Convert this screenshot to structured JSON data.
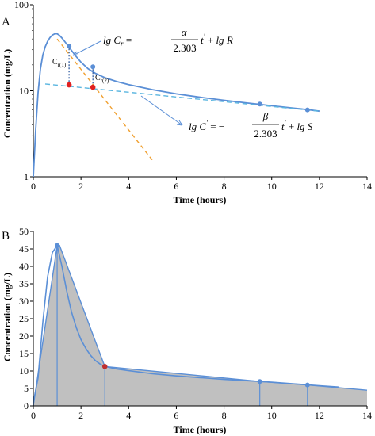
{
  "chart_data": [
    {
      "panel": "A",
      "type": "line",
      "title": "",
      "xlabel": "Time (hours)",
      "ylabel": "Concentration (mg/L)",
      "xlim": [
        0,
        14
      ],
      "ylim": [
        1,
        100
      ],
      "yscale": "log",
      "x_ticks": [
        "0",
        "2",
        "4",
        "6",
        "8",
        "10",
        "12",
        "14"
      ],
      "y_ticks": [
        "1",
        "10",
        "100"
      ],
      "grid": false,
      "legend": "none",
      "colors": {
        "curve": "#5b8fd6",
        "terminal_line": "#5bb6e0",
        "residual_line": "#f0a030",
        "residual_points": "#e02020"
      },
      "series": [
        {
          "style": "curve",
          "x": [
            0,
            0.1,
            0.2,
            0.3,
            0.4,
            0.5,
            0.6,
            0.7,
            0.8,
            0.9,
            1.0,
            1.1,
            1.2,
            1.4,
            1.6,
            1.8,
            2.0,
            2.3,
            2.6,
            3.0,
            3.5,
            4.0,
            5.0,
            6.0,
            7.0,
            8.0,
            9.0,
            9.5,
            10.0,
            11.0,
            11.5,
            12.0
          ],
          "values": [
            1,
            3.5,
            9.5,
            18,
            26,
            32.5,
            37.5,
            41.5,
            44.5,
            46,
            46,
            44,
            41,
            35,
            29.5,
            25,
            21.5,
            18,
            16,
            14.2,
            12.8,
            11.8,
            10.3,
            9.2,
            8.4,
            7.75,
            7.2,
            6.95,
            6.7,
            6.25,
            6.05,
            5.8
          ]
        },
        {
          "style": "points",
          "x": [
            1.5,
            2.5,
            9.5,
            11.5
          ],
          "values": [
            33,
            19,
            7,
            6
          ]
        },
        {
          "style": "terminal-line",
          "x": [
            0.5,
            12
          ],
          "values": [
            12,
            5.8
          ]
        },
        {
          "style": "residual-line",
          "x": [
            1.0,
            5.0
          ],
          "values": [
            40,
            1.55
          ]
        },
        {
          "style": "residual-points",
          "x": [
            1.5,
            2.5
          ],
          "values": [
            11.7,
            11
          ]
        }
      ],
      "annotations": {
        "cr1": "C",
        "cr1_sub": "r(1)",
        "cr2": "C",
        "cr2_sub": "r(2)",
        "eq1": {
          "lg": "lg",
          "var": "C",
          "sub": "r",
          "eq": "=",
          "minus": "−",
          "num": "α",
          "den": "2.303",
          "t": "t",
          "prime": "′",
          "plus": "+",
          "lg2": "lg",
          "const": "R"
        },
        "eq2": {
          "lg": "lg",
          "var": "C",
          "sup": "′",
          "eq": "=",
          "minus": "−",
          "num": "β",
          "den": "2.303",
          "t": "t",
          "prime": "′",
          "plus": "+",
          "lg2": "lg",
          "const": "S"
        }
      }
    },
    {
      "panel": "B",
      "type": "area",
      "title": "",
      "xlabel": "Time (hours)",
      "ylabel": "Concentration (mg/L)",
      "xlim": [
        0,
        14
      ],
      "ylim": [
        0,
        50
      ],
      "x_ticks": [
        "0",
        "2",
        "4",
        "6",
        "8",
        "10",
        "12",
        "14"
      ],
      "y_ticks": [
        "0",
        "5",
        "10",
        "15",
        "20",
        "25",
        "30",
        "35",
        "40",
        "45",
        "50"
      ],
      "grid": false,
      "legend": "none",
      "colors": {
        "curve": "#5b8fd6",
        "fill": "#c0c0c0",
        "highlight_point": "#c03030"
      },
      "series": [
        {
          "style": "curve",
          "x": [
            0,
            0.2,
            0.4,
            0.6,
            0.8,
            1.0,
            1.2,
            1.4,
            1.6,
            1.8,
            2.0,
            2.2,
            2.4,
            2.6,
            2.8,
            3.0,
            3.5,
            4.0,
            5.0,
            6.0,
            7.0,
            8.0,
            9.0,
            9.5,
            10.0,
            11.0,
            11.5,
            12.0,
            12.8
          ],
          "values": [
            1,
            8,
            24,
            37,
            44,
            46,
            40,
            33,
            27,
            22.5,
            19,
            16.5,
            14.5,
            13,
            12,
            11.3,
            10.6,
            10.1,
            9.2,
            8.6,
            8.1,
            7.6,
            7.2,
            7.0,
            6.8,
            6.3,
            6.05,
            5.8,
            5.4
          ]
        },
        {
          "style": "trapezoid-outline",
          "x": [
            0,
            1.0,
            1.1,
            3.0,
            9.5,
            11.5,
            14.0
          ],
          "values": [
            0,
            46,
            46,
            11.3,
            7.0,
            6.0,
            4.5
          ]
        },
        {
          "style": "points",
          "x": [
            1.0,
            9.5,
            11.5
          ],
          "values": [
            46,
            7,
            6
          ]
        },
        {
          "style": "highlight-point",
          "x": [
            3.0
          ],
          "values": [
            11.3
          ]
        },
        {
          "style": "drop-lines",
          "x": [
            1.0,
            3.0,
            9.5,
            11.5
          ],
          "values": [
            46,
            11.3,
            7,
            6
          ]
        }
      ]
    }
  ],
  "panels": {
    "a_letter": "A",
    "b_letter": "B"
  }
}
